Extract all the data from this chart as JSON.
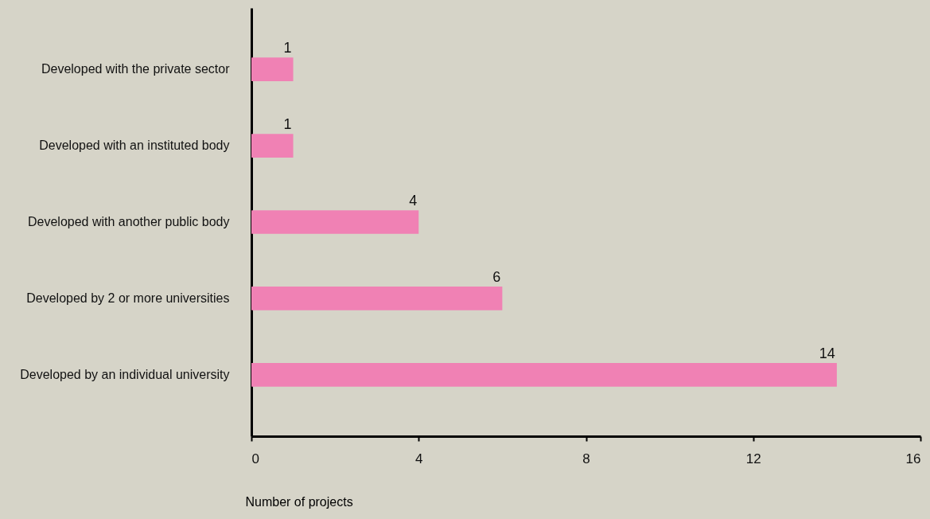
{
  "chart_data": {
    "type": "bar",
    "orientation": "horizontal",
    "categories": [
      "Developed with the private sector",
      "Developed with an instituted body",
      "Developed with another public body",
      "Developed by 2 or more universities",
      "Developed by an individual university"
    ],
    "values": [
      1,
      1,
      4,
      6,
      14
    ],
    "color": "#f081b4",
    "data_labels": true,
    "xlabel": "Number of projects",
    "xlim": [
      0,
      16
    ],
    "xticks": [
      0,
      4,
      8,
      12,
      16
    ],
    "grid": false
  }
}
